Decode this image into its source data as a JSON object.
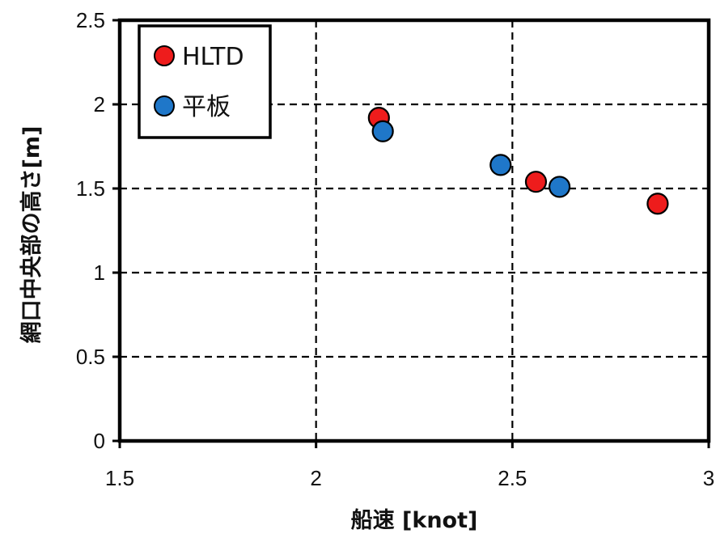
{
  "chart_data": {
    "type": "scatter",
    "xlabel": "船速 [knot]",
    "ylabel": "網口中央部の高さ[m]",
    "xlim": [
      1.5,
      3
    ],
    "ylim": [
      0,
      2.5
    ],
    "x_ticks": [
      "1.5",
      "2",
      "2.5",
      "3"
    ],
    "y_ticks": [
      "0",
      "0.5",
      "1",
      "1.5",
      "2",
      "2.5"
    ],
    "x_tick_values": [
      1.5,
      2,
      2.5,
      3
    ],
    "y_tick_values": [
      0,
      0.5,
      1,
      1.5,
      2,
      2.5
    ],
    "grid": "dashed",
    "legend_position": "top-left",
    "series": [
      {
        "name": "HLTD",
        "color": "#ee1c1c",
        "points": [
          {
            "x": 2.16,
            "y": 1.92
          },
          {
            "x": 2.56,
            "y": 1.54
          },
          {
            "x": 2.87,
            "y": 1.41
          }
        ]
      },
      {
        "name": "平板",
        "color": "#1f77c9",
        "points": [
          {
            "x": 2.17,
            "y": 1.84
          },
          {
            "x": 2.47,
            "y": 1.64
          },
          {
            "x": 2.62,
            "y": 1.51
          }
        ]
      }
    ]
  }
}
